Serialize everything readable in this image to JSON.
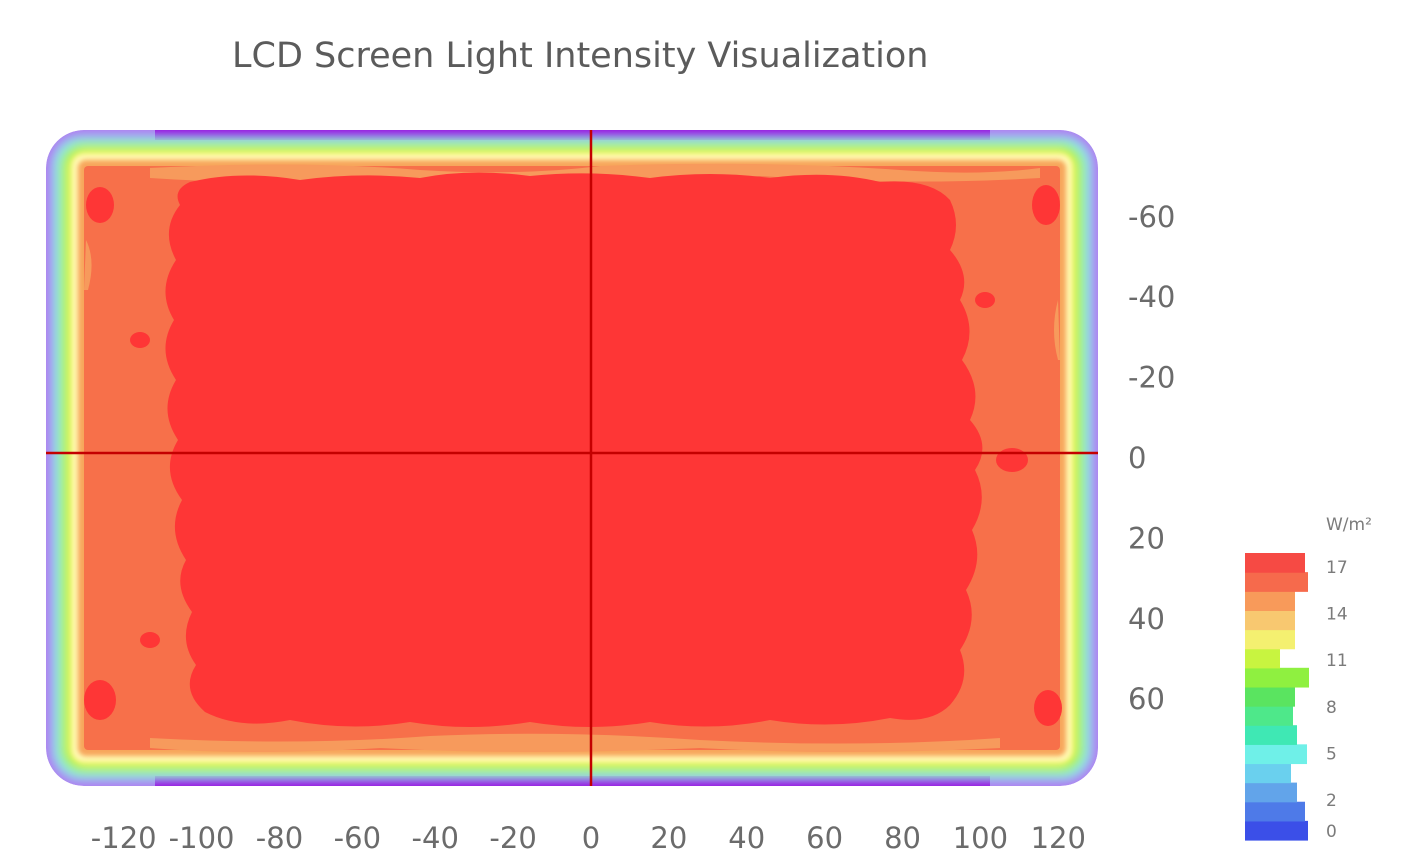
{
  "chart_data": {
    "type": "heatmap",
    "title": "LCD Screen Light Intensity Visualization",
    "x_ticks": [
      -120,
      -100,
      -80,
      -60,
      -40,
      -20,
      0,
      20,
      40,
      60,
      80,
      100,
      120
    ],
    "y_ticks": [
      -60,
      -40,
      -20,
      0,
      20,
      40,
      60
    ],
    "xlim": [
      -130,
      120
    ],
    "ylim": [
      -80,
      80
    ],
    "grid": false,
    "crosshair_lines": {
      "x": 0,
      "y": 0,
      "color": "#c40000"
    },
    "colorbar": {
      "unit": "W/m²",
      "ticks": [
        0,
        2,
        5,
        8,
        11,
        14,
        17
      ],
      "range": [
        0,
        18
      ],
      "placement": "right",
      "colors": [
        "#3b4fe8",
        "#4e7ae8",
        "#62a4ea",
        "#6ad0ee",
        "#6ff0e8",
        "#3fe8b4",
        "#4ee88a",
        "#5ae460",
        "#8ff040",
        "#c8f440",
        "#f4f070",
        "#f8c870",
        "#f89a5a",
        "#f66a4c",
        "#f64a44"
      ]
    },
    "intensity_levels": {
      "center": 17.5,
      "inner_ring": 15.5,
      "edge_glow": 11,
      "outer_border": 2
    }
  }
}
